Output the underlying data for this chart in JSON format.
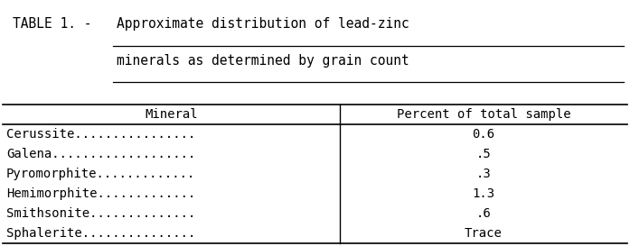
{
  "title_prefix": "TABLE 1. - ",
  "title_line1": "Approximate distribution of lead-zinc",
  "title_line2": "minerals as determined by grain count",
  "col1_header": "Mineral",
  "col2_header": "Percent of total sample",
  "rows": [
    [
      "Cerussite................",
      "0.6"
    ],
    [
      "Galena...................",
      ".5"
    ],
    [
      "Pyromorphite.............",
      ".3"
    ],
    [
      "Hemimorphite.............",
      "1.3"
    ],
    [
      "Smithsonite..............",
      ".6"
    ],
    [
      "Sphalerite...............",
      "Trace"
    ]
  ],
  "col_split": 0.54,
  "bg_color": "#ffffff",
  "text_color": "#000000",
  "font_family": "monospace",
  "font_size": 10,
  "title_font_size": 10.5
}
